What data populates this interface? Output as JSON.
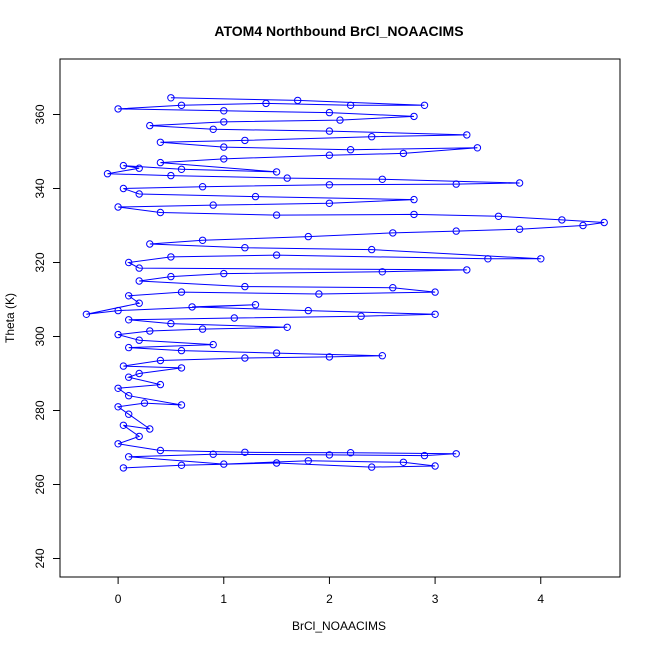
{
  "chart_data": {
    "type": "scatter",
    "title": "ATOM4 Northbound BrCl_NOAACIMS",
    "xlabel": "BrCl_NOAACIMS",
    "ylabel": "Theta (K)",
    "xlim": [
      -0.55,
      4.75
    ],
    "ylim": [
      235,
      375
    ],
    "x_ticks": [
      0,
      1,
      2,
      3,
      4
    ],
    "y_ticks": [
      240,
      260,
      280,
      300,
      320,
      340,
      360
    ],
    "grid": false,
    "series_color": "#0000ff",
    "marker": "open-circle",
    "connected": true,
    "series": [
      {
        "name": "",
        "points": [
          [
            0.05,
            264.5
          ],
          [
            0.6,
            265.2
          ],
          [
            1.5,
            265.8
          ],
          [
            2.4,
            264.7
          ],
          [
            3.0,
            265.0
          ],
          [
            2.7,
            266.0
          ],
          [
            1.8,
            266.4
          ],
          [
            1.0,
            265.5
          ],
          [
            0.1,
            267.5
          ],
          [
            0.9,
            268.2
          ],
          [
            2.0,
            268.0
          ],
          [
            2.9,
            267.8
          ],
          [
            3.2,
            268.3
          ],
          [
            2.2,
            268.6
          ],
          [
            1.2,
            268.7
          ],
          [
            0.4,
            269.2
          ],
          [
            0.0,
            271
          ],
          [
            0.2,
            273
          ],
          [
            0.05,
            276
          ],
          [
            0.3,
            275
          ],
          [
            0.1,
            279
          ],
          [
            0.0,
            281
          ],
          [
            0.25,
            282
          ],
          [
            0.6,
            281.5
          ],
          [
            0.1,
            284
          ],
          [
            0.0,
            286
          ],
          [
            0.4,
            287
          ],
          [
            0.1,
            289
          ],
          [
            0.2,
            290
          ],
          [
            0.6,
            291.5
          ],
          [
            0.05,
            292
          ],
          [
            0.4,
            293.5
          ],
          [
            1.2,
            294.2
          ],
          [
            2.0,
            294.5
          ],
          [
            2.5,
            294.8
          ],
          [
            1.5,
            295.5
          ],
          [
            0.6,
            296.2
          ],
          [
            0.1,
            297
          ],
          [
            0.9,
            297.8
          ],
          [
            0.2,
            299
          ],
          [
            0.0,
            300.5
          ],
          [
            0.3,
            301.5
          ],
          [
            0.8,
            302
          ],
          [
            1.6,
            302.5
          ],
          [
            0.5,
            303.5
          ],
          [
            0.1,
            304.5
          ],
          [
            1.1,
            305
          ],
          [
            2.3,
            305.5
          ],
          [
            3.0,
            306
          ],
          [
            1.8,
            307
          ],
          [
            0.7,
            308
          ],
          [
            1.3,
            308.6
          ],
          [
            0.0,
            307
          ],
          [
            -0.3,
            306
          ],
          [
            0.2,
            309
          ],
          [
            0.1,
            311
          ],
          [
            0.6,
            312
          ],
          [
            1.9,
            311.5
          ],
          [
            3.0,
            312
          ],
          [
            2.6,
            313.2
          ],
          [
            1.2,
            313.5
          ],
          [
            0.2,
            315
          ],
          [
            0.5,
            316.2
          ],
          [
            1.0,
            317
          ],
          [
            2.5,
            317.5
          ],
          [
            3.3,
            318
          ],
          [
            0.2,
            318.5
          ],
          [
            0.1,
            320
          ],
          [
            0.5,
            321.5
          ],
          [
            1.5,
            322
          ],
          [
            3.5,
            321
          ],
          [
            4.0,
            321
          ],
          [
            2.4,
            323.5
          ],
          [
            1.2,
            324
          ],
          [
            0.3,
            325
          ],
          [
            0.8,
            326
          ],
          [
            1.8,
            327
          ],
          [
            2.6,
            328
          ],
          [
            3.2,
            328.5
          ],
          [
            3.8,
            329
          ],
          [
            4.4,
            330
          ],
          [
            4.6,
            330.8
          ],
          [
            4.2,
            331.5
          ],
          [
            3.6,
            332.5
          ],
          [
            2.8,
            333
          ],
          [
            1.5,
            332.8
          ],
          [
            0.4,
            333.5
          ],
          [
            0.0,
            335
          ],
          [
            0.9,
            335.5
          ],
          [
            2.0,
            336
          ],
          [
            2.8,
            337
          ],
          [
            1.3,
            337.8
          ],
          [
            0.2,
            338.5
          ],
          [
            0.05,
            340
          ],
          [
            0.8,
            340.5
          ],
          [
            2.0,
            341
          ],
          [
            3.2,
            341.2
          ],
          [
            3.8,
            341.5
          ],
          [
            2.5,
            342.5
          ],
          [
            1.6,
            342.8
          ],
          [
            0.5,
            343.5
          ],
          [
            -0.1,
            344
          ],
          [
            0.2,
            345.5
          ],
          [
            0.05,
            346.2
          ],
          [
            0.6,
            345.2
          ],
          [
            1.5,
            344.5
          ],
          [
            0.4,
            347
          ],
          [
            1.0,
            348
          ],
          [
            2.0,
            349
          ],
          [
            2.7,
            349.5
          ],
          [
            3.4,
            351
          ],
          [
            2.2,
            350.5
          ],
          [
            1.0,
            351.2
          ],
          [
            0.4,
            352.5
          ],
          [
            1.2,
            353
          ],
          [
            2.4,
            354
          ],
          [
            3.3,
            354.5
          ],
          [
            2.0,
            355.5
          ],
          [
            0.9,
            356
          ],
          [
            0.3,
            357
          ],
          [
            1.0,
            358
          ],
          [
            2.1,
            358.5
          ],
          [
            2.8,
            359.5
          ],
          [
            2.0,
            360.5
          ],
          [
            1.0,
            361
          ],
          [
            0.0,
            361.5
          ],
          [
            0.6,
            362.5
          ],
          [
            1.4,
            363
          ],
          [
            2.2,
            362.5
          ],
          [
            2.9,
            362.5
          ],
          [
            1.7,
            363.8
          ],
          [
            0.5,
            364.5
          ]
        ]
      }
    ]
  }
}
